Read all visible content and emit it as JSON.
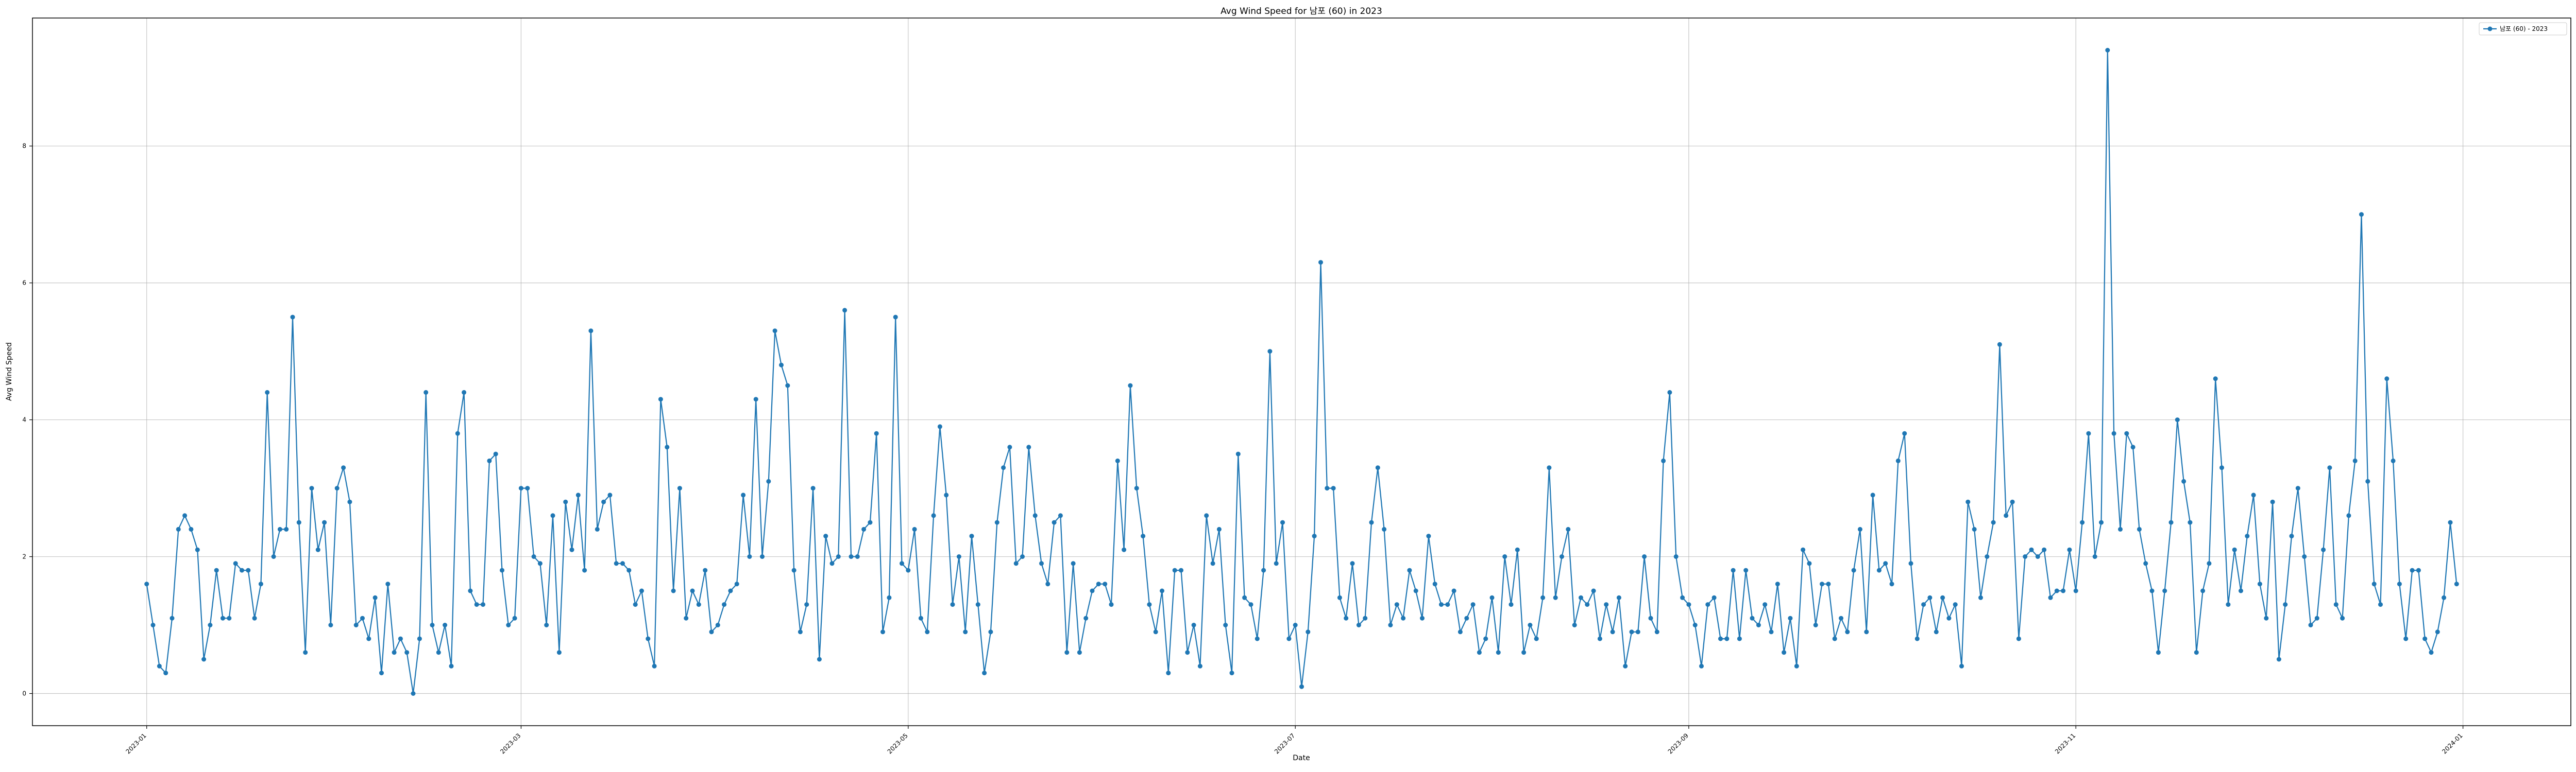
{
  "chart_data": {
    "type": "line",
    "title": "Avg Wind Speed for 남포 (60) in 2023",
    "xlabel": "Date",
    "ylabel": "Avg Wind Speed",
    "x_start": "2023-01-01",
    "x_end": "2023-12-31",
    "xlim": [
      "2022-12-14",
      "2024-01-18"
    ],
    "ylim": [
      -0.47,
      9.87
    ],
    "x_ticks": [
      "2023-01",
      "2023-03",
      "2023-05",
      "2023-07",
      "2023-09",
      "2023-11",
      "2024-01"
    ],
    "y_ticks": [
      0,
      2,
      4,
      6,
      8
    ],
    "grid": true,
    "legend_position": "top-right",
    "series": [
      {
        "name": "남포 (60) - 2023",
        "color": "#1f77b4",
        "marker": "circle",
        "values": [
          1.6,
          1.0,
          0.4,
          0.3,
          1.1,
          2.4,
          2.6,
          2.4,
          2.1,
          0.5,
          1.0,
          1.8,
          1.1,
          1.1,
          1.9,
          1.8,
          1.8,
          1.1,
          1.6,
          4.4,
          2.0,
          2.4,
          2.4,
          5.5,
          2.5,
          0.6,
          3.0,
          2.1,
          2.5,
          1.0,
          3.0,
          3.3,
          2.8,
          1.0,
          1.1,
          0.8,
          1.4,
          0.3,
          1.6,
          0.6,
          0.8,
          0.6,
          0.0,
          0.8,
          4.4,
          1.0,
          0.6,
          1.0,
          0.4,
          3.8,
          4.4,
          1.5,
          1.3,
          1.3,
          3.4,
          3.5,
          1.8,
          1.0,
          1.1,
          3.0,
          3.0,
          2.0,
          1.9,
          1.0,
          2.6,
          0.6,
          2.8,
          2.1,
          2.9,
          1.8,
          5.3,
          2.4,
          2.8,
          2.9,
          1.9,
          1.9,
          1.8,
          1.3,
          1.5,
          0.8,
          0.4,
          4.3,
          3.6,
          1.5,
          3.0,
          1.1,
          1.5,
          1.3,
          1.8,
          0.9,
          1.0,
          1.3,
          1.5,
          1.6,
          2.9,
          2.0,
          4.3,
          2.0,
          3.1,
          5.3,
          4.8,
          4.5,
          1.8,
          0.9,
          1.3,
          3.0,
          0.5,
          2.3,
          1.9,
          2.0,
          5.6,
          2.0,
          2.0,
          2.4,
          2.5,
          3.8,
          0.9,
          1.4,
          5.5,
          1.9,
          1.8,
          2.4,
          1.1,
          0.9,
          2.6,
          3.9,
          2.9,
          1.3,
          2.0,
          0.9,
          2.3,
          1.3,
          0.3,
          0.9,
          2.5,
          3.3,
          3.6,
          1.9,
          2.0,
          3.6,
          2.6,
          1.9,
          1.6,
          2.5,
          2.6,
          0.6,
          1.9,
          0.6,
          1.1,
          1.5,
          1.6,
          1.6,
          1.3,
          3.4,
          2.1,
          4.5,
          3.0,
          2.3,
          1.3,
          0.9,
          1.5,
          0.3,
          1.8,
          1.8,
          0.6,
          1.0,
          0.4,
          2.6,
          1.9,
          2.4,
          1.0,
          0.3,
          3.5,
          1.4,
          1.3,
          0.8,
          1.8,
          5.0,
          1.9,
          2.5,
          0.8,
          1.0,
          0.1,
          0.9,
          2.3,
          6.3,
          3.0,
          3.0,
          1.4,
          1.1,
          1.9,
          1.0,
          1.1,
          2.5,
          3.3,
          2.4,
          1.0,
          1.3,
          1.1,
          1.8,
          1.5,
          1.1,
          2.3,
          1.6,
          1.3,
          1.3,
          1.5,
          0.9,
          1.1,
          1.3,
          0.6,
          0.8,
          1.4,
          0.6,
          2.0,
          1.3,
          2.1,
          0.6,
          1.0,
          0.8,
          1.4,
          3.3,
          1.4,
          2.0,
          2.4,
          1.0,
          1.4,
          1.3,
          1.5,
          0.8,
          1.3,
          0.9,
          1.4,
          0.4,
          0.9,
          0.9,
          2.0,
          1.1,
          0.9,
          3.4,
          4.4,
          2.0,
          1.4,
          1.3,
          1.0,
          0.4,
          1.3,
          1.4,
          0.8,
          0.8,
          1.8,
          0.8,
          1.8,
          1.1,
          1.0,
          1.3,
          0.9,
          1.6,
          0.6,
          1.1,
          0.4,
          2.1,
          1.9,
          1.0,
          1.6,
          1.6,
          0.8,
          1.1,
          0.9,
          1.8,
          2.4,
          0.9,
          2.9,
          1.8,
          1.9,
          1.6,
          3.4,
          3.8,
          1.9,
          0.8,
          1.3,
          1.4,
          0.9,
          1.4,
          1.1,
          1.3,
          0.4,
          2.8,
          2.4,
          1.4,
          2.0,
          2.5,
          5.1,
          2.6,
          2.8,
          0.8,
          2.0,
          2.1,
          2.0,
          2.1,
          1.4,
          1.5,
          1.5,
          2.1,
          1.5,
          2.5,
          3.8,
          2.0,
          2.5,
          9.4,
          3.8,
          2.4,
          3.8,
          3.6,
          2.4,
          1.9,
          1.5,
          0.6,
          1.5,
          2.5,
          4.0,
          3.1,
          2.5,
          0.6,
          1.5,
          1.9,
          4.6,
          3.3,
          1.3,
          2.1,
          1.5,
          2.3,
          2.9,
          1.6,
          1.1,
          2.8,
          0.5,
          1.3,
          2.3,
          3.0,
          2.0,
          1.0,
          1.1,
          2.1,
          3.3,
          1.3,
          1.1,
          2.6,
          3.4,
          7.0,
          3.1,
          1.6,
          1.3,
          4.6,
          3.4,
          1.6,
          0.8,
          1.8,
          1.8,
          0.8,
          0.6,
          0.9,
          1.4,
          2.5,
          1.6
        ]
      }
    ]
  }
}
